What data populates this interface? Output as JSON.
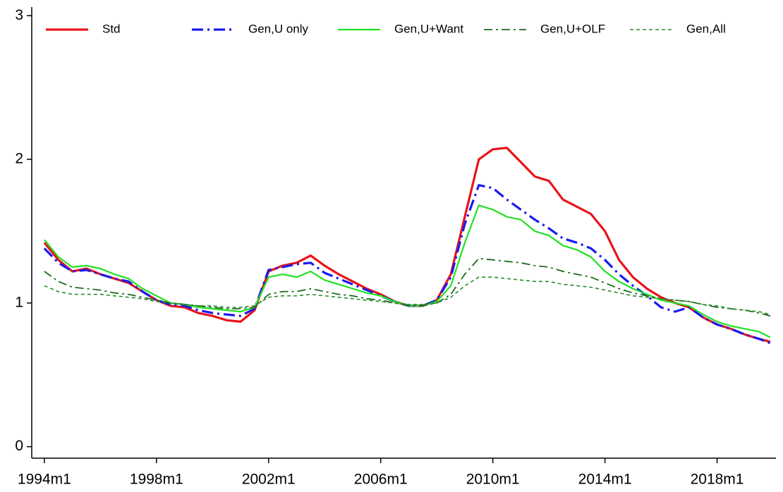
{
  "chart_data": {
    "type": "line",
    "x": [
      1994,
      1994.5,
      1995,
      1995.5,
      1996,
      1996.5,
      1997,
      1997.5,
      1998,
      1998.5,
      1999,
      1999.5,
      2000,
      2000.5,
      2001,
      2001.5,
      2002,
      2002.5,
      2003,
      2003.5,
      2004,
      2004.5,
      2005,
      2005.5,
      2006,
      2006.5,
      2007,
      2007.5,
      2008,
      2008.5,
      2009,
      2009.5,
      2010,
      2010.5,
      2011,
      2011.5,
      2012,
      2012.5,
      2013,
      2013.5,
      2014,
      2014.5,
      2015,
      2015.5,
      2016,
      2016.5,
      2017,
      2017.5,
      2018,
      2018.5,
      2019,
      2019.5,
      2019.9
    ],
    "series": [
      {
        "name": "Std",
        "color": "#e8141a",
        "width": 3.2,
        "dash": "none",
        "values": [
          1.42,
          1.3,
          1.22,
          1.24,
          1.2,
          1.17,
          1.14,
          1.08,
          1.02,
          0.98,
          0.97,
          0.93,
          0.91,
          0.88,
          0.87,
          0.95,
          1.22,
          1.26,
          1.28,
          1.33,
          1.26,
          1.2,
          1.15,
          1.1,
          1.06,
          1.01,
          0.98,
          0.98,
          1.02,
          1.2,
          1.6,
          2.0,
          2.07,
          2.08,
          1.98,
          1.88,
          1.85,
          1.72,
          1.67,
          1.62,
          1.5,
          1.3,
          1.18,
          1.1,
          1.04,
          1.0,
          0.97,
          0.9,
          0.85,
          0.82,
          0.78,
          0.75,
          0.73
        ]
      },
      {
        "name": "Gen,U only",
        "color": "#1a1aef",
        "width": 3.2,
        "dash": "16 6 3 6",
        "values": [
          1.38,
          1.28,
          1.22,
          1.23,
          1.2,
          1.17,
          1.15,
          1.08,
          1.02,
          0.99,
          0.98,
          0.95,
          0.93,
          0.92,
          0.91,
          0.96,
          1.23,
          1.25,
          1.27,
          1.28,
          1.21,
          1.17,
          1.13,
          1.09,
          1.05,
          1.01,
          0.98,
          0.98,
          1.02,
          1.18,
          1.55,
          1.82,
          1.8,
          1.72,
          1.65,
          1.58,
          1.52,
          1.45,
          1.42,
          1.38,
          1.3,
          1.2,
          1.12,
          1.05,
          0.97,
          0.94,
          0.97,
          0.9,
          0.85,
          0.82,
          0.78,
          0.75,
          0.72
        ]
      },
      {
        "name": "Gen,U+Want",
        "color": "#22e022",
        "width": 2.2,
        "dash": "none",
        "values": [
          1.44,
          1.32,
          1.25,
          1.26,
          1.24,
          1.2,
          1.17,
          1.1,
          1.05,
          1.0,
          0.99,
          0.97,
          0.96,
          0.95,
          0.94,
          0.97,
          1.18,
          1.2,
          1.18,
          1.22,
          1.16,
          1.13,
          1.1,
          1.07,
          1.05,
          1.01,
          0.98,
          0.98,
          1.01,
          1.12,
          1.42,
          1.68,
          1.65,
          1.6,
          1.58,
          1.5,
          1.47,
          1.4,
          1.37,
          1.32,
          1.22,
          1.15,
          1.1,
          1.06,
          1.02,
          1.0,
          0.98,
          0.92,
          0.87,
          0.84,
          0.82,
          0.8,
          0.76
        ]
      },
      {
        "name": "Gen,U+OLF",
        "color": "#1d6b1d",
        "width": 1.8,
        "dash": "12 5 3 5",
        "values": [
          1.22,
          1.15,
          1.11,
          1.1,
          1.09,
          1.07,
          1.06,
          1.04,
          1.02,
          1.0,
          0.99,
          0.98,
          0.97,
          0.96,
          0.96,
          0.97,
          1.06,
          1.08,
          1.08,
          1.1,
          1.08,
          1.06,
          1.05,
          1.03,
          1.02,
          1.0,
          0.98,
          0.98,
          1.0,
          1.06,
          1.2,
          1.31,
          1.3,
          1.29,
          1.28,
          1.26,
          1.25,
          1.22,
          1.2,
          1.18,
          1.14,
          1.1,
          1.07,
          1.05,
          1.03,
          1.02,
          1.01,
          0.99,
          0.97,
          0.96,
          0.95,
          0.93,
          0.91
        ]
      },
      {
        "name": "Gen,All",
        "color": "#2a8a2a",
        "width": 1.6,
        "dash": "5 4",
        "values": [
          1.12,
          1.08,
          1.06,
          1.06,
          1.06,
          1.05,
          1.04,
          1.03,
          1.01,
          1.0,
          0.99,
          0.98,
          0.98,
          0.97,
          0.97,
          0.98,
          1.04,
          1.05,
          1.05,
          1.06,
          1.05,
          1.04,
          1.03,
          1.02,
          1.01,
          1.0,
          0.99,
          0.99,
          1.0,
          1.04,
          1.12,
          1.18,
          1.18,
          1.17,
          1.16,
          1.15,
          1.15,
          1.13,
          1.12,
          1.11,
          1.09,
          1.07,
          1.05,
          1.04,
          1.03,
          1.02,
          1.01,
          0.99,
          0.98,
          0.96,
          0.95,
          0.94,
          0.92
        ]
      }
    ],
    "xlim": [
      1993.55,
      2020.1
    ],
    "xticks": [
      {
        "value": 1994,
        "label": "1994m1"
      },
      {
        "value": 1998,
        "label": "1998m1"
      },
      {
        "value": 2002,
        "label": "2002m1"
      },
      {
        "value": 2006,
        "label": "2006m1"
      },
      {
        "value": 2010,
        "label": "2010m1"
      },
      {
        "value": 2014,
        "label": "2014m1"
      },
      {
        "value": 2018,
        "label": "2018m1"
      }
    ],
    "ylim": [
      -0.08,
      3.06
    ],
    "yticks": [
      0,
      1,
      2,
      3
    ],
    "grid": false,
    "legend": "top"
  }
}
